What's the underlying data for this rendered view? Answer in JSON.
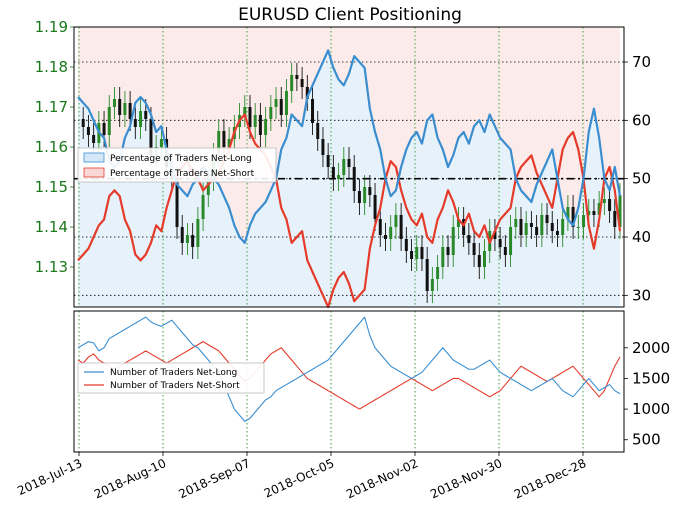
{
  "colors": {
    "long": "#3a8ed0",
    "short": "#e53b2b",
    "long_fill": "#d5e8f7",
    "short_fill": "#f8d7d4",
    "price_up": "#2a8a2a",
    "price_down": "#111111",
    "grid_green": "#2a9a2a",
    "grid_black": "#000000",
    "left_tick_color": "#1a7a1a"
  },
  "chart_data": [
    {
      "type": "line",
      "title": "EURUSD Client Positioning",
      "y_left_ticks": [
        "1.13",
        "1.14",
        "1.15",
        "1.16",
        "1.17",
        "1.18",
        "1.19"
      ],
      "y_left_range": [
        1.12,
        1.19
      ],
      "y_right_ticks": [
        "30",
        "40",
        "50",
        "60",
        "70"
      ],
      "y_right_range": [
        28,
        76
      ],
      "reference_line": 50,
      "legend": [
        "Percentage of Traders Net-Long",
        "Percentage of Traders Net-Short"
      ],
      "x_ticks": [
        "2018-Jul-13",
        "2018-Aug-10",
        "2018-Sep-07",
        "2018-Oct-05",
        "2018-Nov-02",
        "2018-Nov-30",
        "2018-Dec-28"
      ],
      "price_ohlc_close": [
        1.167,
        1.165,
        1.163,
        1.161,
        1.166,
        1.163,
        1.17,
        1.172,
        1.168,
        1.171,
        1.167,
        1.165,
        1.169,
        1.167,
        1.158,
        1.16,
        1.162,
        1.155,
        1.152,
        1.14,
        1.136,
        1.138,
        1.135,
        1.142,
        1.148,
        1.152,
        1.158,
        1.164,
        1.16,
        1.162,
        1.165,
        1.168,
        1.17,
        1.165,
        1.168,
        1.163,
        1.167,
        1.17,
        1.172,
        1.168,
        1.174,
        1.178,
        1.177,
        1.175,
        1.172,
        1.166,
        1.162,
        1.158,
        1.155,
        1.152,
        1.153,
        1.157,
        1.155,
        1.149,
        1.146,
        1.15,
        1.148,
        1.142,
        1.138,
        1.137,
        1.14,
        1.143,
        1.137,
        1.134,
        1.132,
        1.135,
        1.132,
        1.124,
        1.127,
        1.13,
        1.135,
        1.133,
        1.14,
        1.142,
        1.138,
        1.136,
        1.133,
        1.13,
        1.134,
        1.139,
        1.137,
        1.135,
        1.133,
        1.14,
        1.142,
        1.138,
        1.141,
        1.14,
        1.138,
        1.143,
        1.141,
        1.139,
        1.138,
        1.142,
        1.145,
        1.14,
        1.14,
        1.143,
        1.144,
        1.143,
        1.146,
        1.147,
        1.144,
        1.14,
        1.148
      ],
      "series": [
        {
          "name": "Percentage of Traders Net-Long",
          "values": [
            64,
            63,
            62,
            60,
            58,
            57,
            53,
            52,
            53,
            57,
            59,
            63,
            64,
            63,
            61,
            58,
            59,
            55,
            52,
            49,
            48,
            47,
            49,
            50,
            52,
            51,
            50,
            49,
            47,
            45,
            42,
            40,
            39,
            42,
            44,
            45,
            46,
            48,
            50,
            55,
            57,
            61,
            60,
            59,
            64,
            66,
            68,
            70,
            72,
            69,
            67,
            66,
            68,
            71,
            70,
            69,
            62,
            58,
            55,
            50,
            47,
            48,
            52,
            55,
            57,
            58,
            56,
            60,
            61,
            57,
            55,
            52,
            54,
            57,
            58,
            56,
            59,
            60,
            58,
            61,
            59,
            57,
            56,
            55,
            50,
            48,
            47,
            46,
            49,
            51,
            53,
            55,
            50,
            45,
            43,
            42,
            45,
            50,
            58,
            62,
            57,
            50,
            48,
            52,
            47
          ]
        },
        {
          "name": "Percentage of Traders Net-Short",
          "values": [
            36,
            37,
            38,
            40,
            42,
            43,
            47,
            48,
            47,
            43,
            41,
            37,
            36,
            37,
            39,
            42,
            41,
            45,
            48,
            51,
            52,
            53,
            51,
            50,
            48,
            49,
            50,
            51,
            53,
            55,
            58,
            60,
            61,
            58,
            56,
            55,
            54,
            52,
            50,
            45,
            43,
            39,
            40,
            41,
            36,
            34,
            32,
            30,
            28,
            31,
            33,
            34,
            32,
            29,
            30,
            31,
            38,
            42,
            45,
            50,
            53,
            52,
            48,
            45,
            43,
            42,
            44,
            40,
            39,
            43,
            45,
            48,
            46,
            43,
            42,
            44,
            41,
            40,
            42,
            39,
            41,
            43,
            44,
            45,
            50,
            52,
            53,
            54,
            51,
            49,
            47,
            45,
            50,
            55,
            57,
            58,
            55,
            50,
            42,
            38,
            43,
            50,
            52,
            48,
            41
          ]
        }
      ]
    },
    {
      "type": "line",
      "y_right_ticks": [
        "500",
        "1000",
        "1500",
        "2000"
      ],
      "y_range": [
        300,
        2600
      ],
      "legend": [
        "Number of Traders Net-Long",
        "Number of Traders Net-Short"
      ],
      "series": [
        {
          "name": "Number of Traders Net-Long",
          "values": [
            2000,
            2050,
            2100,
            2080,
            1950,
            2000,
            2150,
            2200,
            2250,
            2300,
            2350,
            2400,
            2450,
            2500,
            2420,
            2380,
            2350,
            2400,
            2450,
            2350,
            2250,
            2150,
            2050,
            2000,
            1900,
            1800,
            1700,
            1600,
            1400,
            1200,
            1000,
            900,
            800,
            850,
            950,
            1050,
            1150,
            1200,
            1300,
            1350,
            1400,
            1450,
            1500,
            1550,
            1600,
            1650,
            1700,
            1750,
            1800,
            1900,
            2000,
            2100,
            2200,
            2300,
            2400,
            2500,
            2200,
            2000,
            1900,
            1800,
            1700,
            1650,
            1600,
            1550,
            1500,
            1550,
            1600,
            1700,
            1800,
            1900,
            2000,
            1900,
            1800,
            1750,
            1700,
            1650,
            1650,
            1700,
            1750,
            1800,
            1700,
            1600,
            1550,
            1500,
            1450,
            1400,
            1350,
            1300,
            1350,
            1400,
            1450,
            1500,
            1400,
            1300,
            1250,
            1200,
            1300,
            1400,
            1500,
            1400,
            1300,
            1350,
            1400,
            1300,
            1250
          ]
        },
        {
          "name": "Number of Traders Net-Short",
          "values": [
            1800,
            1750,
            1850,
            1900,
            1800,
            1750,
            1700,
            1650,
            1700,
            1750,
            1800,
            1850,
            1900,
            1950,
            1900,
            1850,
            1800,
            1750,
            1800,
            1850,
            1900,
            1950,
            2000,
            2050,
            2100,
            2050,
            2000,
            1950,
            1850,
            1750,
            1650,
            1550,
            1450,
            1500,
            1600,
            1700,
            1800,
            1900,
            1950,
            2000,
            1900,
            1800,
            1700,
            1600,
            1500,
            1450,
            1400,
            1350,
            1300,
            1250,
            1200,
            1150,
            1100,
            1050,
            1000,
            1050,
            1100,
            1150,
            1200,
            1250,
            1300,
            1350,
            1400,
            1450,
            1500,
            1450,
            1400,
            1350,
            1300,
            1350,
            1400,
            1450,
            1500,
            1500,
            1450,
            1400,
            1350,
            1300,
            1250,
            1200,
            1250,
            1300,
            1400,
            1500,
            1600,
            1700,
            1650,
            1600,
            1550,
            1500,
            1450,
            1500,
            1550,
            1600,
            1650,
            1700,
            1600,
            1500,
            1400,
            1300,
            1200,
            1300,
            1500,
            1700,
            1850
          ]
        }
      ]
    }
  ]
}
